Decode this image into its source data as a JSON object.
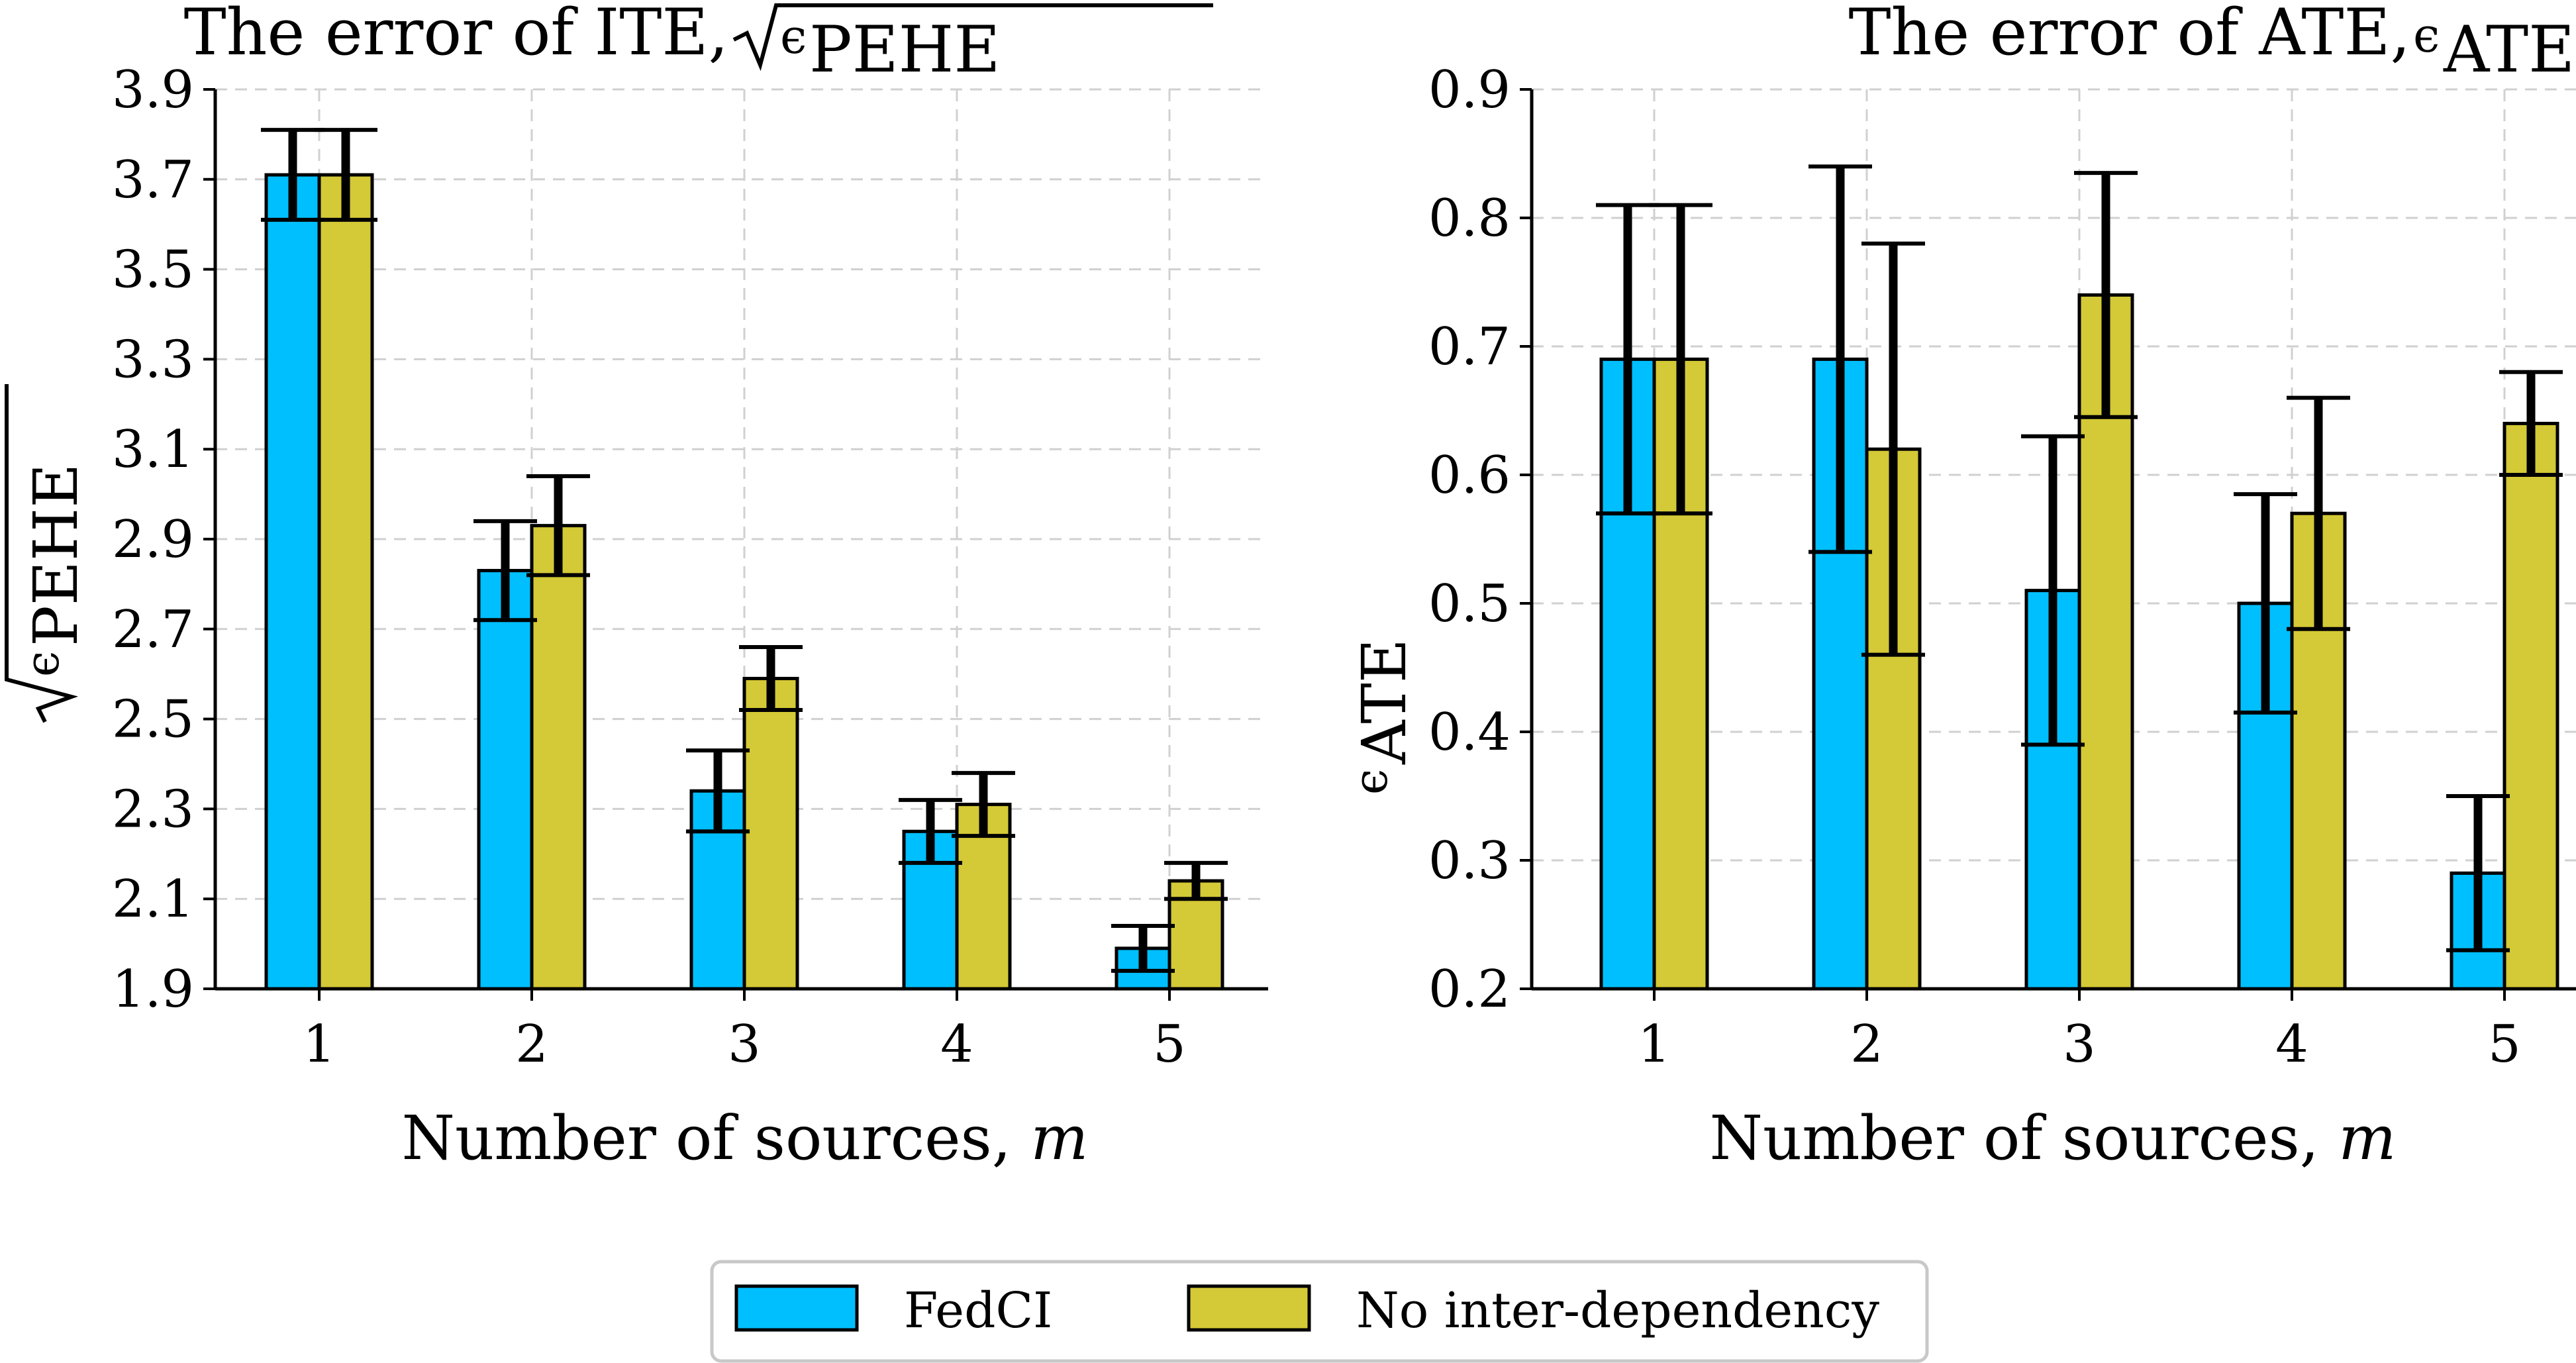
{
  "colors": {
    "fedci": "#00bfff",
    "noid": "#d4c936"
  },
  "legend": {
    "items": [
      {
        "label": "FedCI",
        "color": "#00bfff"
      },
      {
        "label": "No inter-dependency",
        "color": "#d4c936"
      }
    ],
    "placement": "bottom-center"
  },
  "chart_data": [
    {
      "type": "bar",
      "title": "The error of ITE, √ϵPEHE",
      "title_main": "The error of ITE, ",
      "title_sub": "PEHE",
      "xlabel_main": "Number of sources, ",
      "xlabel_var": "m",
      "ylabel_sub": "PEHE",
      "categories": [
        "1",
        "2",
        "3",
        "4",
        "5"
      ],
      "ylim": [
        1.9,
        3.9
      ],
      "yticks": [
        1.9,
        2.1,
        2.3,
        2.5,
        2.7,
        2.9,
        3.1,
        3.3,
        3.5,
        3.7,
        3.9
      ],
      "ytick_labels": [
        "1.9",
        "2.1",
        "2.3",
        "2.5",
        "2.7",
        "2.9",
        "3.1",
        "3.3",
        "3.5",
        "3.7",
        "3.9"
      ],
      "grid": true,
      "series": [
        {
          "name": "FedCI",
          "values": [
            3.71,
            2.83,
            2.34,
            2.25,
            1.99
          ],
          "errors": [
            0.1,
            0.11,
            0.09,
            0.07,
            0.05
          ]
        },
        {
          "name": "No inter-dependency",
          "values": [
            3.71,
            2.93,
            2.59,
            2.31,
            2.14
          ],
          "errors": [
            0.1,
            0.11,
            0.07,
            0.07,
            0.04
          ]
        }
      ]
    },
    {
      "type": "bar",
      "title": "The error of ATE, ϵATE",
      "title_main": "The error of ATE, ",
      "title_sub": "ATE",
      "xlabel_main": "Number of sources, ",
      "xlabel_var": "m",
      "ylabel_sub": "ATE",
      "categories": [
        "1",
        "2",
        "3",
        "4",
        "5"
      ],
      "ylim": [
        0.2,
        0.9
      ],
      "yticks": [
        0.2,
        0.3,
        0.4,
        0.5,
        0.6,
        0.7,
        0.8,
        0.9
      ],
      "ytick_labels": [
        "0.2",
        "0.3",
        "0.4",
        "0.5",
        "0.6",
        "0.7",
        "0.8",
        "0.9"
      ],
      "grid": true,
      "series": [
        {
          "name": "FedCI",
          "values": [
            0.69,
            0.69,
            0.51,
            0.5,
            0.29
          ],
          "errors": [
            0.12,
            0.15,
            0.12,
            0.085,
            0.06
          ]
        },
        {
          "name": "No inter-dependency",
          "values": [
            0.69,
            0.62,
            0.74,
            0.57,
            0.64
          ],
          "errors": [
            0.12,
            0.16,
            0.095,
            0.09,
            0.04
          ]
        }
      ]
    }
  ]
}
